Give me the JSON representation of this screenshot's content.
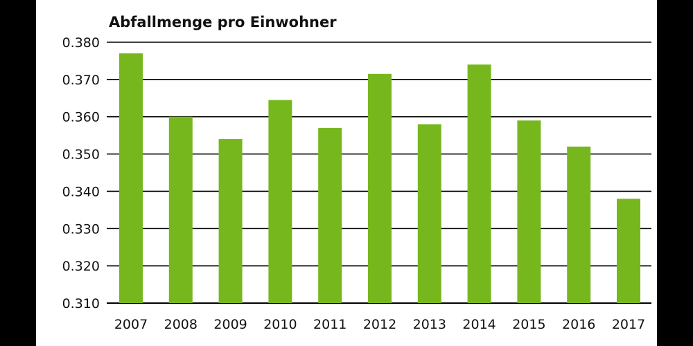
{
  "colors": {
    "page_background": "#000000",
    "panel_background": "#ffffff",
    "bar": "#77b71e",
    "gridline": "#000000",
    "text": "#111111"
  },
  "chart_data": {
    "type": "bar",
    "title": "Abfallmenge pro Einwohner",
    "xlabel": "",
    "ylabel": "",
    "categories": [
      "2007",
      "2008",
      "2009",
      "2010",
      "2011",
      "2012",
      "2013",
      "2014",
      "2015",
      "2016",
      "2017"
    ],
    "values": [
      0.377,
      0.36,
      0.354,
      0.3645,
      0.357,
      0.3715,
      0.358,
      0.374,
      0.359,
      0.352,
      0.338
    ],
    "ylim": [
      0.31,
      0.38
    ],
    "yticks": [
      0.31,
      0.32,
      0.33,
      0.34,
      0.35,
      0.36,
      0.37,
      0.38
    ],
    "ytick_labels": [
      "0.310",
      "0.320",
      "0.330",
      "0.340",
      "0.350",
      "0.360",
      "0.370",
      "0.380"
    ],
    "grid": true,
    "legend": "none"
  }
}
